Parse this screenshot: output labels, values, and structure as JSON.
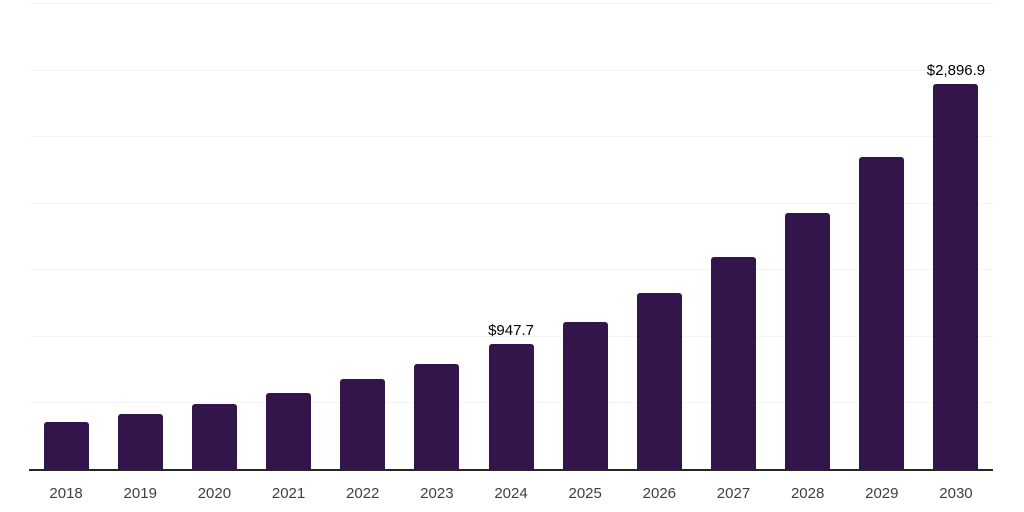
{
  "chart_data": {
    "type": "bar",
    "title": "",
    "xlabel": "",
    "ylabel": "",
    "categories": [
      "2018",
      "2019",
      "2020",
      "2021",
      "2022",
      "2023",
      "2024",
      "2025",
      "2026",
      "2027",
      "2028",
      "2029",
      "2030"
    ],
    "values": [
      359,
      423,
      494,
      578,
      680,
      799,
      947.7,
      1114,
      1330,
      1599,
      1929,
      2351,
      2896.9
    ],
    "data_labels": {
      "2024": "$947.7",
      "2030": "$2,896.9"
    },
    "ylim": [
      0,
      3500
    ],
    "gridline_step": 500,
    "y_axis_labels_visible": false,
    "grid": "horizontal",
    "legend": "none",
    "colors": {
      "bar": "#32154A",
      "axis_line": "#262626",
      "gridline": "#F4F4F4",
      "tick_label": "#3F3F3F",
      "value_label": "#000000",
      "background": "#FFFFFF"
    }
  }
}
